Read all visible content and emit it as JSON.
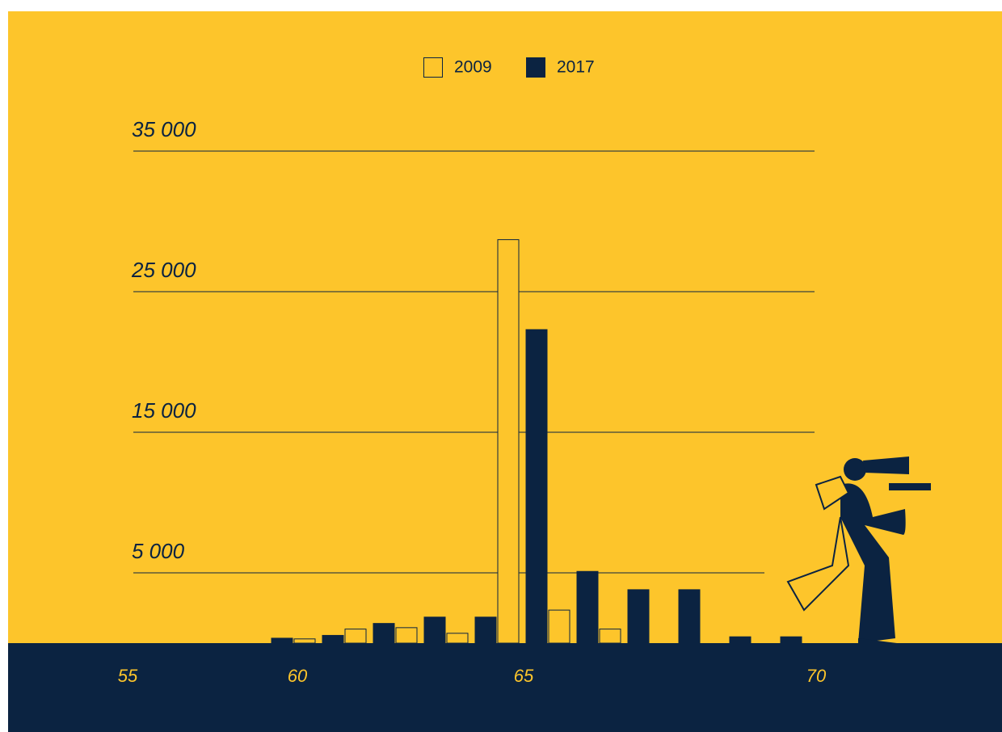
{
  "chart_data": {
    "type": "bar",
    "categories": [
      null,
      null,
      null,
      null,
      null,
      null,
      null,
      null,
      null,
      null,
      null
    ],
    "series": [
      {
        "name": "2009",
        "color": "#fdc52b",
        "values": [
          null,
          300,
          1000,
          1100,
          700,
          28700,
          2350,
          1000,
          null,
          null,
          null
        ]
      },
      {
        "name": "2017",
        "color": "#0b2341",
        "values": [
          350,
          550,
          1400,
          1850,
          1850,
          22300,
          5100,
          3800,
          3800,
          450,
          450
        ]
      }
    ],
    "x_labels": [
      "55",
      "60",
      "65",
      "70"
    ],
    "ylim": [
      0,
      35000
    ],
    "yticks": [
      {
        "value": 5000,
        "label": "5 000"
      },
      {
        "value": 15000,
        "label": "15 000"
      },
      {
        "value": 25000,
        "label": "25 000"
      },
      {
        "value": 35000,
        "label": "35 000"
      }
    ],
    "grid": true
  }
}
